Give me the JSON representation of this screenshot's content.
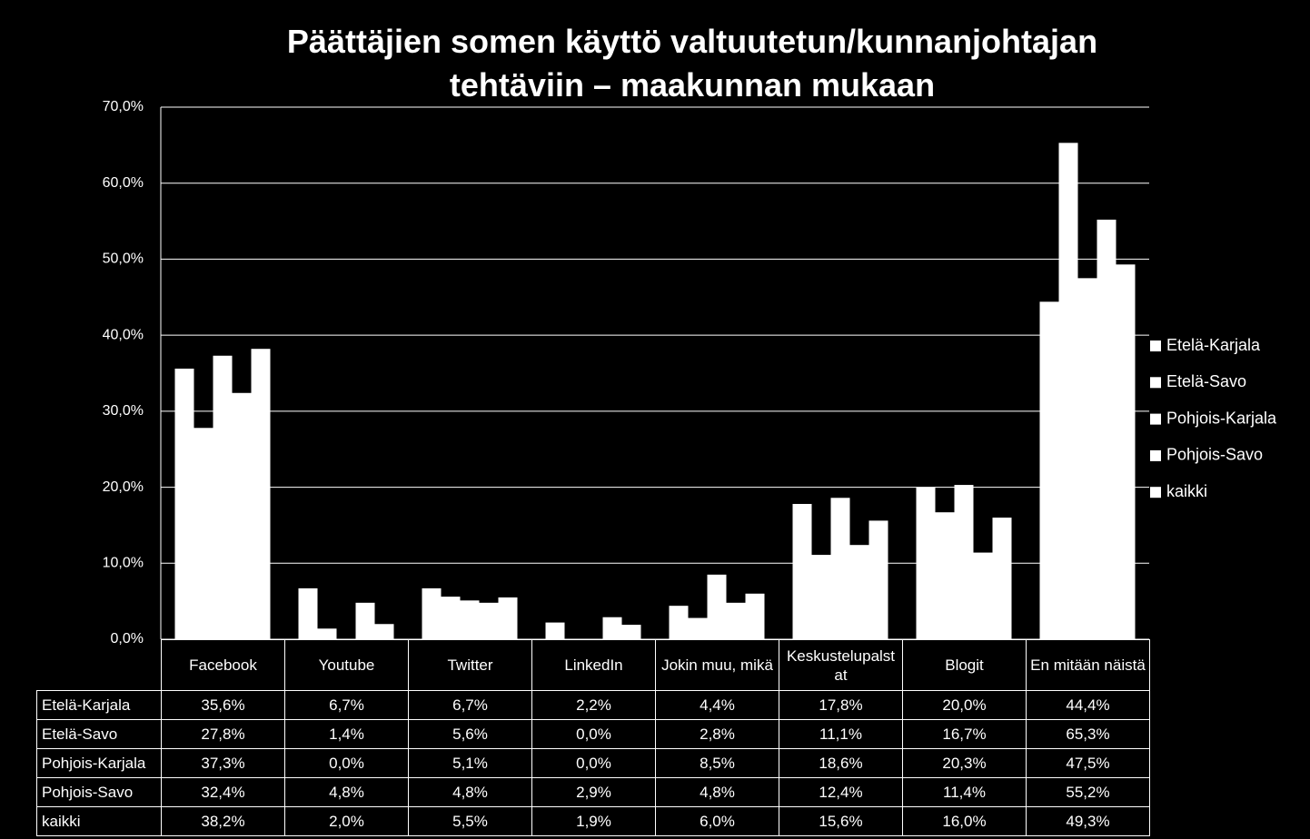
{
  "chart_data": {
    "type": "bar",
    "title": "Päättäjien somen käyttö valtuutetun/kunnanjohtajan tehtäviin – maakunnan mukaan",
    "categories": [
      "Facebook",
      "Youtube",
      "Twitter",
      "LinkedIn",
      "Jokin muu, mikä",
      "Keskustelupalstat",
      "Blogit",
      "En mitään näistä"
    ],
    "series": [
      {
        "name": "Etelä-Karjala",
        "color": "#ffffff",
        "values": [
          35.6,
          6.7,
          6.7,
          2.2,
          4.4,
          17.8,
          20.0,
          44.4
        ],
        "value_labels": [
          "35,6%",
          "6,7%",
          "6,7%",
          "2,2%",
          "4,4%",
          "17,8%",
          "20,0%",
          "44,4%"
        ]
      },
      {
        "name": "Etelä-Savo",
        "color": "#ffffff",
        "values": [
          27.8,
          1.4,
          5.6,
          0.0,
          2.8,
          11.1,
          16.7,
          65.3
        ],
        "value_labels": [
          "27,8%",
          "1,4%",
          "5,6%",
          "0,0%",
          "2,8%",
          "11,1%",
          "16,7%",
          "65,3%"
        ]
      },
      {
        "name": "Pohjois-Karjala",
        "color": "#ffffff",
        "values": [
          37.3,
          0.0,
          5.1,
          0.0,
          8.5,
          18.6,
          20.3,
          47.5
        ],
        "value_labels": [
          "37,3%",
          "0,0%",
          "5,1%",
          "0,0%",
          "8,5%",
          "18,6%",
          "20,3%",
          "47,5%"
        ]
      },
      {
        "name": "Pohjois-Savo",
        "color": "#ffffff",
        "values": [
          32.4,
          4.8,
          4.8,
          2.9,
          4.8,
          12.4,
          11.4,
          55.2
        ],
        "value_labels": [
          "32,4%",
          "4,8%",
          "4,8%",
          "2,9%",
          "4,8%",
          "12,4%",
          "11,4%",
          "55,2%"
        ]
      },
      {
        "name": "kaikki",
        "color": "#ffffff",
        "values": [
          38.2,
          2.0,
          5.5,
          1.9,
          6.0,
          15.6,
          16.0,
          49.3
        ],
        "value_labels": [
          "38,2%",
          "2,0%",
          "5,5%",
          "1,9%",
          "6,0%",
          "15,6%",
          "16,0%",
          "49,3%"
        ]
      }
    ],
    "ylim": [
      0,
      70
    ],
    "yticks": [
      {
        "value": 0,
        "label": "0,0%"
      },
      {
        "value": 10,
        "label": "10,0%"
      },
      {
        "value": 20,
        "label": "20,0%"
      },
      {
        "value": 30,
        "label": "30,0%"
      },
      {
        "value": 40,
        "label": "40,0%"
      },
      {
        "value": 50,
        "label": "50,0%"
      },
      {
        "value": 60,
        "label": "60,0%"
      },
      {
        "value": 70,
        "label": "70,0%"
      }
    ],
    "grid": true,
    "legend": "right"
  }
}
